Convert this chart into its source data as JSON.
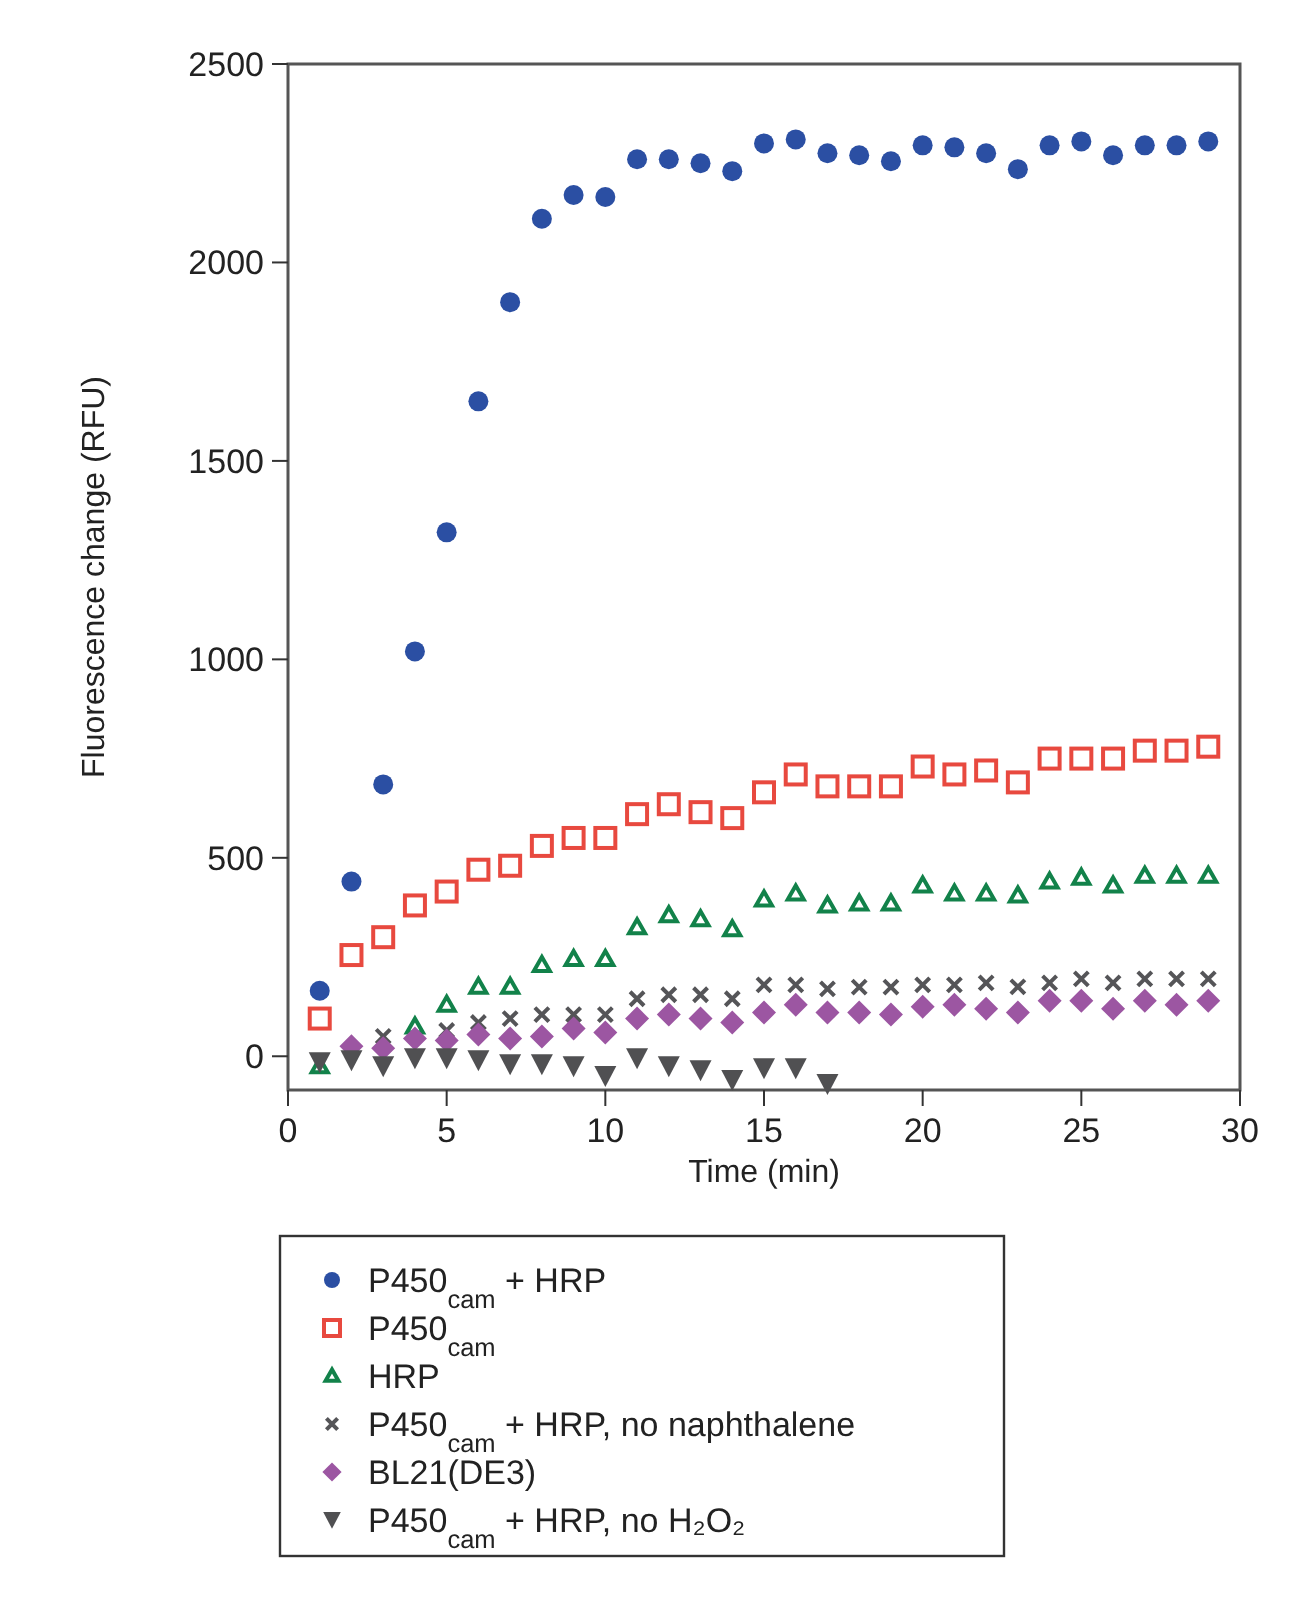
{
  "chart_data": {
    "type": "scatter",
    "xlabel": "Time (min)",
    "ylabel": "Fluorescence change (RFU)",
    "xlim": [
      0,
      30
    ],
    "ylim": [
      -85,
      2500
    ],
    "xticks": [
      0,
      5,
      10,
      15,
      20,
      25,
      30
    ],
    "yticks": [
      0,
      500,
      1000,
      1500,
      2000,
      2500
    ],
    "legend": "bottom",
    "grid": false,
    "series": [
      {
        "name": "P450$_{cam}$ + HRP",
        "color": "#2b4fa3",
        "marker": "circle",
        "x": [
          1,
          2,
          3,
          4,
          5,
          6,
          7,
          8,
          9,
          10,
          11,
          12,
          13,
          14,
          15,
          16,
          17,
          18,
          19,
          20,
          21,
          22,
          23,
          24,
          25,
          26,
          27,
          28,
          29
        ],
        "values": [
          165,
          440,
          685,
          1020,
          1320,
          1650,
          1900,
          2110,
          2170,
          2165,
          2260,
          2260,
          2250,
          2230,
          2300,
          2310,
          2275,
          2270,
          2255,
          2295,
          2290,
          2275,
          2235,
          2295,
          2305,
          2270,
          2295,
          2295,
          2305
        ]
      },
      {
        "name": "P450$_{cam}$",
        "color": "#e8493f",
        "marker": "square",
        "x": [
          1,
          2,
          3,
          4,
          5,
          6,
          7,
          8,
          9,
          10,
          11,
          12,
          13,
          14,
          15,
          16,
          17,
          18,
          19,
          20,
          21,
          22,
          23,
          24,
          25,
          26,
          27,
          28,
          29
        ],
        "values": [
          95,
          255,
          300,
          380,
          415,
          470,
          480,
          530,
          550,
          550,
          610,
          635,
          615,
          600,
          665,
          710,
          680,
          680,
          680,
          730,
          710,
          720,
          690,
          750,
          750,
          750,
          770,
          770,
          780
        ]
      },
      {
        "name": "HRP",
        "color": "#12824a",
        "marker": "triangle",
        "x": [
          1,
          4,
          5,
          6,
          7,
          8,
          9,
          10,
          11,
          12,
          13,
          14,
          15,
          16,
          17,
          18,
          19,
          20,
          21,
          22,
          23,
          24,
          25,
          26,
          27,
          28,
          29
        ],
        "values": [
          -25,
          75,
          130,
          175,
          175,
          230,
          245,
          245,
          325,
          355,
          345,
          320,
          395,
          410,
          380,
          385,
          385,
          430,
          410,
          410,
          405,
          440,
          450,
          430,
          455,
          455,
          455
        ]
      },
      {
        "name": "P450$_{cam}$ + HRP, no naphthalene",
        "color": "#555558",
        "marker": "cross",
        "x": [
          3,
          5,
          6,
          7,
          8,
          9,
          10,
          11,
          12,
          13,
          14,
          15,
          16,
          17,
          18,
          19,
          20,
          21,
          22,
          23,
          24,
          25,
          26,
          27,
          28,
          29
        ],
        "values": [
          50,
          65,
          85,
          95,
          105,
          105,
          105,
          145,
          155,
          155,
          145,
          180,
          180,
          170,
          174,
          174,
          180,
          180,
          185,
          175,
          185,
          195,
          185,
          195,
          195,
          195
        ]
      },
      {
        "name": "BL21(DE3)",
        "color": "#9c56a2",
        "marker": "diamond",
        "x": [
          2,
          3,
          4,
          5,
          6,
          7,
          8,
          9,
          10,
          11,
          12,
          13,
          14,
          15,
          16,
          17,
          18,
          19,
          20,
          21,
          22,
          23,
          24,
          25,
          26,
          27,
          28,
          29
        ],
        "values": [
          25,
          20,
          45,
          40,
          55,
          45,
          50,
          70,
          60,
          95,
          105,
          95,
          85,
          110,
          130,
          110,
          110,
          105,
          125,
          130,
          120,
          110,
          140,
          140,
          120,
          140,
          130,
          140
        ]
      },
      {
        "name": "P450$_{cam}$ + HRP, no H₂O₂",
        "color": "#505052",
        "marker": "triangle-down",
        "x": [
          1,
          2,
          3,
          4,
          5,
          6,
          7,
          8,
          9,
          10,
          11,
          12,
          13,
          14,
          15,
          16,
          17
        ],
        "values": [
          -15,
          -10,
          -25,
          -5,
          -5,
          -10,
          -20,
          -20,
          -25,
          -50,
          -5,
          -25,
          -35,
          -60,
          -30,
          -30,
          -70
        ]
      }
    ]
  }
}
